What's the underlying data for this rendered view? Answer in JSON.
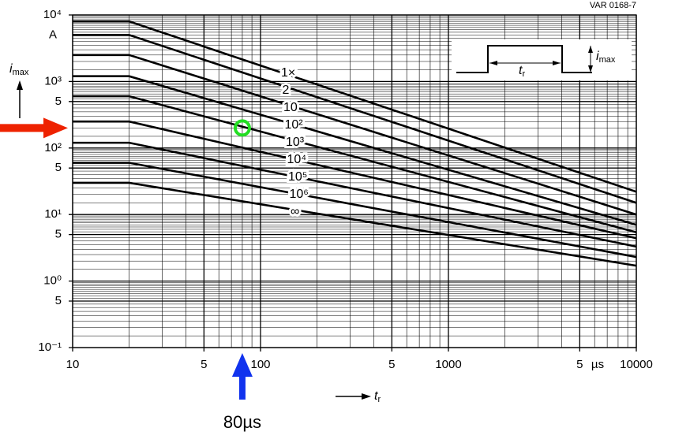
{
  "chart_data": {
    "type": "line",
    "title": "VAR 0168-7",
    "y_label": {
      "symbol": "i",
      "sub": "max"
    },
    "x_label": {
      "symbol": "t",
      "sub": "r"
    },
    "y_unit": "A",
    "x_unit": "µs",
    "inset_labels": {
      "width": {
        "symbol": "t",
        "sub": "r"
      },
      "height": {
        "symbol": "i",
        "sub": "max"
      }
    },
    "log_x": true,
    "log_y": true,
    "grid": true,
    "xlim": [
      10,
      10000
    ],
    "ylim": [
      0.1,
      10000
    ],
    "xticks": [
      10,
      {
        "value": 50,
        "label": "5"
      },
      100,
      {
        "value": 500,
        "label": "5"
      },
      1000,
      {
        "value": 5000,
        "label": "5"
      },
      10000
    ],
    "yticks": [
      {
        "value": 10000,
        "label": "10⁴"
      },
      {
        "value": 1000,
        "label": "10³"
      },
      {
        "value": 500,
        "label": "5"
      },
      {
        "value": 100,
        "label": "10²"
      },
      {
        "value": 50,
        "label": "5"
      },
      {
        "value": 10,
        "label": "10¹"
      },
      5,
      {
        "value": 1,
        "label": "10⁰"
      },
      {
        "value": 0.5,
        "label": "5"
      },
      {
        "value": 0.1,
        "label": "10⁻¹"
      }
    ],
    "x": [
      10,
      20,
      10000
    ],
    "series": [
      {
        "name": "1×",
        "color": "#000000",
        "values": [
          8000,
          8000,
          22
        ]
      },
      {
        "name": "2",
        "color": "#000000",
        "values": [
          5000,
          5000,
          15
        ]
      },
      {
        "name": "10",
        "color": "#000000",
        "values": [
          2500,
          2500,
          10
        ]
      },
      {
        "name": "10²",
        "color": "#000000",
        "values": [
          1200,
          1200,
          7
        ]
      },
      {
        "name": "10³",
        "color": "#000000",
        "values": [
          600,
          600,
          5.4
        ]
      },
      {
        "name": "10⁴",
        "color": "#000000",
        "values": [
          250,
          250,
          4.4
        ]
      },
      {
        "name": "10⁵",
        "color": "#000000",
        "values": [
          120,
          120,
          3.3
        ]
      },
      {
        "name": "10⁶",
        "color": "#000000",
        "values": [
          60,
          60,
          2.3
        ]
      },
      {
        "name": "∞",
        "color": "#000000",
        "values": [
          30,
          30,
          1.7
        ]
      }
    ],
    "highlight": {
      "x": 80,
      "y": 200,
      "label": "80µs",
      "circle_color": "#22dd22",
      "y_arrow_color": "#ee2200",
      "x_arrow_color": "#1133ee"
    }
  }
}
